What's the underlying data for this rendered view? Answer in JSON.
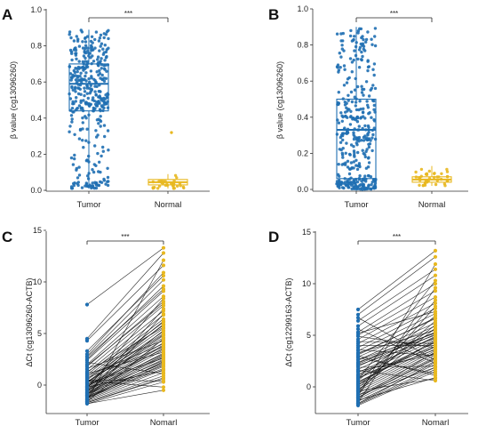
{
  "colors": {
    "tumor": "#1f6fb2",
    "normal": "#e8b820",
    "line": "#111111",
    "axis": "#333333"
  },
  "chart_data": [
    {
      "panel": "A",
      "type": "box-jitter",
      "ylabel": "β value (cg13096260)",
      "categories": [
        "Tumor",
        "Normal"
      ],
      "ylim": [
        0.0,
        1.0
      ],
      "yticks": [
        "0.0",
        "0.2",
        "0.4",
        "0.6",
        "0.8",
        "1.0"
      ],
      "significance": "***",
      "boxes": [
        {
          "category": "Tumor",
          "q1": 0.44,
          "median": 0.59,
          "q3": 0.7,
          "whisker_low": 0.01,
          "whisker_high": 0.89
        },
        {
          "category": "Normal",
          "q1": 0.03,
          "median": 0.045,
          "q3": 0.06,
          "whisker_low": 0.01,
          "whisker_high": 0.09
        }
      ],
      "points": {
        "Tumor_n": 380,
        "Normal_n": 32,
        "Normal_outlier": 0.32
      }
    },
    {
      "panel": "B",
      "type": "box-jitter",
      "ylabel": "β value (cg13096260)",
      "categories": [
        "Tumor",
        "Normal"
      ],
      "ylim": [
        0.0,
        1.0
      ],
      "yticks": [
        "0.0",
        "0.2",
        "0.4",
        "0.6",
        "0.8",
        "1.0"
      ],
      "significance": "***",
      "boxes": [
        {
          "category": "Tumor",
          "q1": 0.06,
          "median": 0.33,
          "q3": 0.5,
          "whisker_low": 0.0,
          "whisker_high": 0.9
        },
        {
          "category": "Normal",
          "q1": 0.04,
          "median": 0.055,
          "q3": 0.07,
          "whisker_low": 0.02,
          "whisker_high": 0.13
        }
      ],
      "points": {
        "Tumor_n": 380,
        "Normal_n": 40
      }
    },
    {
      "panel": "C",
      "type": "paired-line",
      "ylabel": "ΔCt (cg13096260-ACTB)",
      "categories": [
        "Tumor",
        "Nomarl"
      ],
      "ylim": [
        -2,
        15
      ],
      "yticks": [
        "0",
        "5",
        "10",
        "15"
      ],
      "significance": "***",
      "tumor_values": [
        7.8,
        4.5,
        4.3,
        3.0,
        2.8,
        2.5,
        2.4,
        2.0,
        1.8,
        1.5,
        1.2,
        1.0,
        0.8,
        0.6,
        0.5,
        0.3,
        0.2,
        0.0,
        -0.1,
        -0.2,
        -0.3,
        -0.4,
        -0.5,
        -0.6,
        -0.7,
        -0.8,
        -0.9,
        -1.0,
        -1.1,
        -1.2,
        -1.3,
        -1.4,
        -1.5,
        -1.6,
        -1.7,
        -1.8,
        0.4,
        -0.2,
        1.1,
        -1.0,
        0.1,
        -0.6,
        2.2,
        -1.4,
        0.7,
        -0.9,
        -0.3,
        1.6,
        -1.7,
        0.0,
        -0.5,
        -1.2,
        2.7,
        -0.8,
        0.9,
        -1.5,
        -0.1,
        1.3,
        -1.1,
        0.2,
        -0.7,
        -1.6,
        0.5,
        -0.4,
        3.3,
        -1.3,
        0.3,
        -0.2,
        1.9,
        -1.8
      ],
      "normal_values": [
        13.3,
        12.8,
        11.6,
        10.9,
        10.2,
        9.6,
        9.1,
        8.6,
        8.1,
        7.7,
        7.2,
        6.8,
        6.4,
        6.1,
        5.8,
        5.5,
        5.2,
        4.9,
        4.6,
        4.4,
        4.1,
        3.9,
        3.6,
        3.4,
        3.1,
        2.9,
        2.7,
        2.5,
        2.2,
        2.0,
        1.8,
        1.5,
        1.2,
        0.9,
        0.6,
        0.3,
        -0.2,
        4.8,
        3.2,
        7.4,
        2.6,
        5.3,
        1.1,
        6.9,
        3.7,
        2.1,
        8.4,
        4.3,
        0.7,
        5.9,
        3.0,
        1.6,
        9.3,
        2.4,
        4.0,
        12.1,
        3.5,
        5.6,
        1.9,
        6.2,
        2.8,
        4.5,
        0.4,
        3.8,
        10.6,
        2.3,
        5.0,
        1.4,
        7.9,
        -0.5
      ]
    },
    {
      "panel": "D",
      "type": "paired-line",
      "ylabel": "ΔCt (cg12299163-ACTB)",
      "categories": [
        "Tumor",
        "Nomarl"
      ],
      "ylim": [
        -2,
        15
      ],
      "yticks": [
        "0",
        "5",
        "10",
        "15"
      ],
      "significance": "***",
      "tumor_values": [
        7.5,
        7.0,
        6.4,
        5.9,
        5.3,
        5.0,
        4.6,
        4.2,
        3.8,
        3.5,
        3.2,
        2.9,
        2.6,
        2.3,
        2.0,
        1.7,
        1.4,
        1.1,
        0.8,
        0.5,
        0.2,
        0.0,
        -0.2,
        -0.4,
        -0.6,
        -0.8,
        -1.0,
        -1.2,
        -1.4,
        -1.6,
        -1.8,
        3.0,
        1.6,
        -0.3,
        4.4,
        0.6,
        -1.1,
        2.4,
        5.6,
        -0.7,
        1.2,
        3.6,
        -1.5,
        0.3,
        2.8,
        -0.1,
        4.9,
        1.9,
        -0.9,
        0.9,
        3.3,
        -1.3,
        2.1,
        0.1,
        6.7,
        -0.5,
        1.5,
        2.6,
        -1.7,
        4.0,
        0.7,
        -1.0,
        3.1,
        1.0,
        -0.4,
        2.2,
        5.2,
        -1.6,
        0.4,
        -0.8
      ],
      "normal_values": [
        13.2,
        12.6,
        11.4,
        10.8,
        10.0,
        9.3,
        8.7,
        8.1,
        7.6,
        7.1,
        6.6,
        6.2,
        5.9,
        5.6,
        5.3,
        5.1,
        4.8,
        4.6,
        4.3,
        4.1,
        3.9,
        3.7,
        3.5,
        3.3,
        3.1,
        2.9,
        2.7,
        2.5,
        2.2,
        1.9,
        1.5,
        1.1,
        0.6,
        5.7,
        4.2,
        6.9,
        3.4,
        5.0,
        2.3,
        7.8,
        4.9,
        3.0,
        9.6,
        4.4,
        1.3,
        6.4,
        3.8,
        2.0,
        11.9,
        3.6,
        5.5,
        0.9,
        4.7,
        6.0,
        2.6,
        8.4,
        3.2,
        5.2,
        1.7,
        4.0,
        10.3,
        2.8,
        6.7,
        3.9,
        0.8,
        5.3,
        7.3,
        2.4,
        4.5,
        1.9
      ]
    }
  ]
}
